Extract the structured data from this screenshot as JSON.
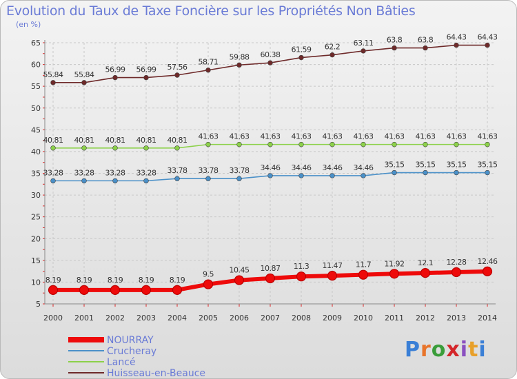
{
  "title": "Evolution du Taux de Taxe Foncière sur les Propriétés Non Bâties",
  "subtitle": "(en %)",
  "logo": {
    "letters": [
      "P",
      "r",
      "o",
      "x",
      "i",
      "t",
      "i"
    ],
    "colors": [
      "#3a7fd6",
      "#e8742a",
      "#3a9d3a",
      "#d4262a",
      "#8a4fc0",
      "#e8a02a",
      "#3a7fd6"
    ]
  },
  "chart_data": {
    "type": "line",
    "title": "Evolution du Taux de Taxe Foncière sur les Propriétés Non Bâties",
    "ylabel": "(en %)",
    "xlabel": "",
    "ylim": [
      5,
      65
    ],
    "yticks": [
      5,
      10,
      15,
      20,
      25,
      30,
      35,
      40,
      45,
      50,
      55,
      60,
      65
    ],
    "categories": [
      "2000",
      "2001",
      "2002",
      "2003",
      "2004",
      "2005",
      "2006",
      "2007",
      "2008",
      "2009",
      "2010",
      "2011",
      "2012",
      "2013",
      "2014"
    ],
    "series": [
      {
        "name": "NOURRAY",
        "color": "#ee0a0a",
        "values": [
          8.19,
          8.19,
          8.19,
          8.19,
          8.19,
          9.5,
          10.45,
          10.87,
          11.3,
          11.47,
          11.7,
          11.92,
          12.1,
          12.28,
          12.46
        ],
        "labels": [
          "8.19",
          "8.19",
          "8.19",
          "8.19",
          "8.19",
          "9.5",
          "10.45",
          "10.87",
          "11.3",
          "11.47",
          "11.7",
          "11.92",
          "12.1",
          "12.28",
          "12.46"
        ]
      },
      {
        "name": "Crucheray",
        "color": "#4a90c8",
        "values": [
          33.28,
          33.28,
          33.28,
          33.28,
          33.78,
          33.78,
          33.78,
          34.46,
          34.46,
          34.46,
          34.46,
          35.15,
          35.15,
          35.15,
          35.15
        ],
        "labels": [
          "33.28",
          "33.28",
          "33.28",
          "33.28",
          "33.78",
          "33.78",
          "33.78",
          "34.46",
          "34.46",
          "34.46",
          "34.46",
          "35.15",
          "35.15",
          "35.15",
          "35.15"
        ]
      },
      {
        "name": "Lancé",
        "color": "#8cd14a",
        "values": [
          40.81,
          40.81,
          40.81,
          40.81,
          40.81,
          41.63,
          41.63,
          41.63,
          41.63,
          41.63,
          41.63,
          41.63,
          41.63,
          41.63,
          41.63
        ],
        "labels": [
          "40.81",
          "40.81",
          "40.81",
          "40.81",
          "40.81",
          "41.63",
          "41.63",
          "41.63",
          "41.63",
          "41.63",
          "41.63",
          "41.63",
          "41.63",
          "41.63",
          "41.63"
        ]
      },
      {
        "name": "Huisseau-en-Beauce",
        "color": "#6e2a2a",
        "values": [
          55.84,
          55.84,
          56.99,
          56.99,
          57.56,
          58.71,
          59.88,
          60.38,
          61.59,
          62.2,
          63.11,
          63.8,
          63.8,
          64.43,
          64.43
        ],
        "labels": [
          "55.84",
          "55.84",
          "56.99",
          "56.99",
          "57.56",
          "58.71",
          "59.88",
          "60.38",
          "61.59",
          "62.2",
          "63.11",
          "63.8",
          "63.8",
          "64.43",
          "64.43"
        ]
      }
    ],
    "legend": [
      "NOURRAY",
      "Crucheray",
      "Lancé",
      "Huisseau-en-Beauce"
    ],
    "grid": true,
    "legend_position": "bottom-left"
  }
}
